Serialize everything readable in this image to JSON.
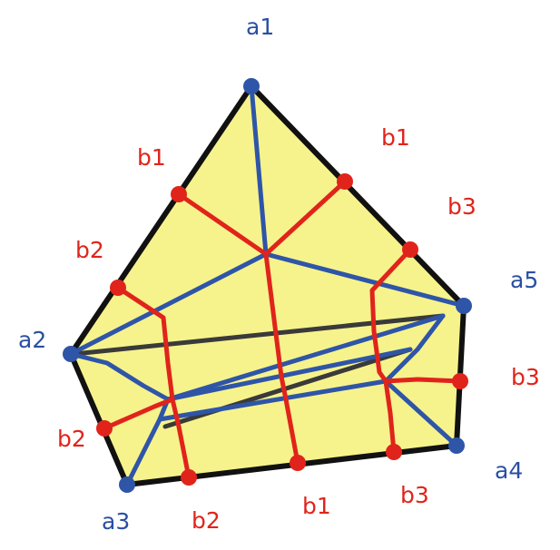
{
  "colors": {
    "fill": "#f6f38c",
    "outline": "#111111",
    "blue": "#2f55a8",
    "red": "#e0241b",
    "dark": "#3a3a3a"
  },
  "labels": {
    "a1": "a1",
    "a2": "a2",
    "a3": "a3",
    "a4": "a4",
    "a5": "a5",
    "b1_top_left": "b1",
    "b1_top_right": "b1",
    "b3_right_upper": "b3",
    "b2_left_upper": "b2",
    "b3_right_lower": "b3",
    "b2_left_lower": "b2",
    "b2_bottom": "b2",
    "b1_bottom": "b1",
    "b3_bottom": "b3"
  }
}
